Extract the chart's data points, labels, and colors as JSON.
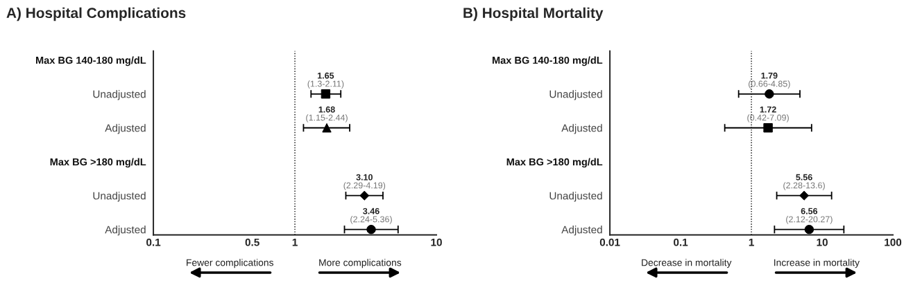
{
  "chart_data": [
    {
      "type": "scatter",
      "orientation": "horizontal",
      "title": "A) Hospital Complications",
      "log": "x",
      "xlim": [
        0.1,
        10
      ],
      "xticks": [
        0.1,
        0.5,
        1,
        10
      ],
      "grid": false,
      "legend": false,
      "categories": [
        "Max BG 140-180 mg/dL",
        "Unadjusted",
        "Adjusted",
        "Max BG >180 mg/dL",
        "Unadjusted",
        "Adjusted"
      ],
      "ref_lines": [
        {
          "axis": "x",
          "value": 1,
          "line_style": "dotted",
          "color": "#000000"
        }
      ],
      "annotations": [
        "Fewer complications",
        "More complications"
      ],
      "series": [
        {
          "color": "#000000",
          "marker": "square",
          "values": [
            null,
            1.65,
            null,
            null,
            null,
            null
          ],
          "errors": [
            null,
            [
              1.3,
              2.11
            ],
            null,
            null,
            null,
            null
          ],
          "value_labels": [
            null,
            "1.65\n(1.3-2.11)",
            null,
            null,
            null,
            null
          ]
        },
        {
          "color": "#000000",
          "marker": "triangle",
          "values": [
            null,
            null,
            1.68,
            null,
            null,
            null
          ],
          "errors": [
            null,
            null,
            [
              1.15,
              2.44
            ],
            null,
            null,
            null
          ],
          "value_labels": [
            null,
            null,
            "1.68\n(1.15-2.44)",
            null,
            null,
            null
          ]
        },
        {
          "color": "#000000",
          "marker": "diamond",
          "values": [
            null,
            null,
            null,
            null,
            3.1,
            null
          ],
          "errors": [
            null,
            null,
            null,
            null,
            [
              2.29,
              4.19
            ],
            null
          ],
          "value_labels": [
            null,
            null,
            null,
            null,
            "3.10\n(2.29-4.19)",
            null
          ]
        },
        {
          "color": "#000000",
          "marker": "circle",
          "values": [
            null,
            null,
            null,
            null,
            null,
            3.46
          ],
          "errors": [
            null,
            null,
            null,
            null,
            null,
            [
              2.24,
              5.36
            ]
          ],
          "value_labels": [
            null,
            null,
            null,
            null,
            null,
            "3.46\n(2.24-5.36)"
          ]
        }
      ]
    },
    {
      "type": "scatter",
      "orientation": "horizontal",
      "title": "B) Hospital Mortality",
      "log": "x",
      "xlim": [
        0.01,
        100
      ],
      "xticks": [
        0.01,
        0.1,
        1,
        10,
        100
      ],
      "grid": false,
      "legend": false,
      "categories": [
        "Max BG 140-180 mg/dL",
        "Unadjusted",
        "Adjusted",
        "Max BG >180 mg/dL",
        "Unadjusted",
        "Adjusted"
      ],
      "ref_lines": [
        {
          "axis": "x",
          "value": 1,
          "line_style": "dotted",
          "color": "#000000"
        }
      ],
      "annotations": [
        "Decrease in mortality",
        "Increase in mortality"
      ],
      "series": [
        {
          "color": "#000000",
          "marker": "circle",
          "values": [
            null,
            1.79,
            null,
            null,
            null,
            null
          ],
          "errors": [
            null,
            [
              0.66,
              4.85
            ],
            null,
            null,
            null,
            null
          ],
          "value_labels": [
            null,
            "1.79\n(0.66-4.85)",
            null,
            null,
            null,
            null
          ]
        },
        {
          "color": "#000000",
          "marker": "square",
          "values": [
            null,
            null,
            1.72,
            null,
            null,
            null
          ],
          "errors": [
            null,
            null,
            [
              0.42,
              7.09
            ],
            null,
            null,
            null
          ],
          "value_labels": [
            null,
            null,
            "1.72\n(0.42-7.09)",
            null,
            null,
            null
          ]
        },
        {
          "color": "#000000",
          "marker": "diamond",
          "values": [
            null,
            null,
            null,
            null,
            5.56,
            null
          ],
          "errors": [
            null,
            null,
            null,
            null,
            [
              2.28,
              13.6
            ],
            null
          ],
          "value_labels": [
            null,
            null,
            null,
            null,
            "5.56\n(2.28-13.6)",
            null
          ]
        },
        {
          "color": "#000000",
          "marker": "circle",
          "values": [
            null,
            null,
            null,
            null,
            null,
            6.56
          ],
          "errors": [
            null,
            null,
            null,
            null,
            null,
            [
              2.12,
              20.27
            ]
          ],
          "value_labels": [
            null,
            null,
            null,
            null,
            null,
            "6.56\n(2.12-20.27)"
          ]
        }
      ]
    }
  ]
}
